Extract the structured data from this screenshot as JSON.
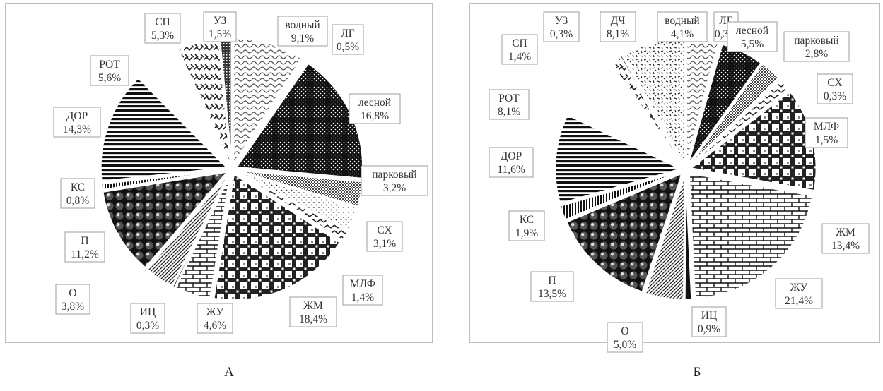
{
  "captions": {
    "a": "А",
    "b": "Б"
  },
  "chart_data": [
    {
      "type": "pie",
      "panel": "А",
      "slices": [
        {
          "label": "водный",
          "value": 9.1,
          "text": "9,1%",
          "pattern": "waves"
        },
        {
          "label": "ЛГ",
          "value": 0.5,
          "text": "0,5%",
          "pattern": "white"
        },
        {
          "label": "лесной",
          "value": 16.8,
          "text": "16,8%",
          "pattern": "dots-dark"
        },
        {
          "label": "парковый",
          "value": 3.2,
          "text": "3,2%",
          "pattern": "checker-fine"
        },
        {
          "label": "СХ",
          "value": 3.1,
          "text": "3,1%",
          "pattern": "dots-light"
        },
        {
          "label": "МЛФ",
          "value": 1.4,
          "text": "1,4%",
          "pattern": "zigzag"
        },
        {
          "label": "ЖМ",
          "value": 18.4,
          "text": "18,4%",
          "pattern": "plaid"
        },
        {
          "label": "ЖУ",
          "value": 4.6,
          "text": "4,6%",
          "pattern": "bricks"
        },
        {
          "label": "ИЦ",
          "value": 0.3,
          "text": "0,3%",
          "pattern": "black"
        },
        {
          "label": "О",
          "value": 3.8,
          "text": "3,8%",
          "pattern": "diag"
        },
        {
          "label": "П",
          "value": 11.2,
          "text": "11,2%",
          "pattern": "spheres"
        },
        {
          "label": "КС",
          "value": 0.8,
          "text": "0,8%",
          "pattern": "vstripes"
        },
        {
          "label": "ДОР",
          "value": 14.3,
          "text": "14,3%",
          "pattern": "hstripes"
        },
        {
          "label": "РОТ",
          "value": 5.6,
          "text": "5,6%",
          "pattern": "white"
        },
        {
          "label": "СП",
          "value": 5.3,
          "text": "5,3%",
          "pattern": "chain"
        },
        {
          "label": "УЗ",
          "value": 1.5,
          "text": "1,5%",
          "pattern": "dense"
        }
      ]
    },
    {
      "type": "pie",
      "panel": "Б",
      "slices": [
        {
          "label": "водный",
          "value": 4.1,
          "text": "4,1%",
          "pattern": "waves"
        },
        {
          "label": "ЛГ",
          "value": 0.3,
          "text": "0,3%",
          "pattern": "white"
        },
        {
          "label": "лесной",
          "value": 5.5,
          "text": "5,5%",
          "pattern": "dots-dark"
        },
        {
          "label": "парковый",
          "value": 2.8,
          "text": "2,8%",
          "pattern": "checker-fine"
        },
        {
          "label": "СХ",
          "value": 0.3,
          "text": "0,3%",
          "pattern": "dots-light"
        },
        {
          "label": "МЛФ",
          "value": 1.5,
          "text": "1,5%",
          "pattern": "zigzag"
        },
        {
          "label": "ЖМ",
          "value": 13.4,
          "text": "13,4%",
          "pattern": "plaid"
        },
        {
          "label": "ЖУ",
          "value": 21.4,
          "text": "21,4%",
          "pattern": "bricks"
        },
        {
          "label": "ИЦ",
          "value": 0.9,
          "text": "0,9%",
          "pattern": "black"
        },
        {
          "label": "О",
          "value": 5.0,
          "text": "5,0%",
          "pattern": "diag"
        },
        {
          "label": "П",
          "value": 13.5,
          "text": "13,5%",
          "pattern": "spheres"
        },
        {
          "label": "КС",
          "value": 1.9,
          "text": "1,9%",
          "pattern": "vstripes"
        },
        {
          "label": "ДОР",
          "value": 11.6,
          "text": "11,6%",
          "pattern": "hstripes"
        },
        {
          "label": "РОТ",
          "value": 8.1,
          "text": "8,1%",
          "pattern": "white"
        },
        {
          "label": "СП",
          "value": 1.4,
          "text": "1,4%",
          "pattern": "chain"
        },
        {
          "label": "УЗ",
          "value": 0.3,
          "text": "0,3%",
          "pattern": "dense"
        },
        {
          "label": "ДЧ",
          "value": 8.1,
          "text": "8,1%",
          "pattern": "confetti"
        }
      ]
    }
  ]
}
